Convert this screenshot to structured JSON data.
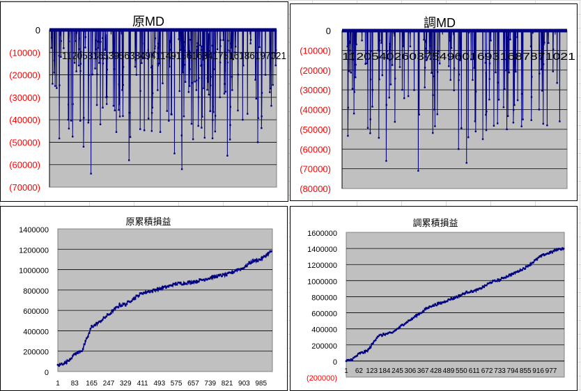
{
  "colors": {
    "series": "#000080",
    "plot_bg": "#c0c0c0",
    "negative_label": "#ff0000",
    "positive_label": "#000000"
  },
  "chart_data": [
    {
      "id": "orig-md",
      "type": "line",
      "title": "原MD",
      "ylim": [
        -70000,
        0
      ],
      "y_ticks": [
        {
          "value": 0,
          "label": "0"
        },
        {
          "value": -10000,
          "label": "(10000)"
        },
        {
          "value": -20000,
          "label": "(20000)"
        },
        {
          "value": -30000,
          "label": "(30000)"
        },
        {
          "value": -40000,
          "label": "(40000)"
        },
        {
          "value": -50000,
          "label": "(50000)"
        },
        {
          "value": -60000,
          "label": "(60000)"
        },
        {
          "value": -70000,
          "label": "(70000)"
        }
      ],
      "x_tick_text": "1120531653956334941149156163417516186197021",
      "n_points": 1040,
      "series": [
        {
          "marker_values": [
            0,
            -12000,
            -40000,
            -5000,
            -52000,
            -64000,
            -8000,
            -30000,
            -10000,
            -2000,
            -58000,
            -20000,
            -6000,
            -45000,
            -15000,
            -3000,
            -55000,
            -62000,
            -25000,
            -12000,
            -48000,
            -7000,
            -30000,
            -56000,
            -10000,
            -40000,
            -2000,
            -50000,
            -20000,
            0
          ]
        }
      ]
    },
    {
      "id": "adj-md",
      "type": "line",
      "title": "調MD",
      "ylim": [
        -80000,
        0
      ],
      "y_ticks": [
        {
          "value": 0,
          "label": "0"
        },
        {
          "value": -10000,
          "label": "(10000)"
        },
        {
          "value": -20000,
          "label": "(20000)"
        },
        {
          "value": -30000,
          "label": "(30000)"
        },
        {
          "value": -40000,
          "label": "(40000)"
        },
        {
          "value": -50000,
          "label": "(50000)"
        },
        {
          "value": -60000,
          "label": "(60000)"
        },
        {
          "value": -70000,
          "label": "(70000)"
        },
        {
          "value": -80000,
          "label": "(80000)"
        }
      ],
      "x_tick_text": "1120540260375496016931687871021",
      "n_points": 1040,
      "series": [
        {
          "marker_values": [
            0,
            -42000,
            -5000,
            -52000,
            -10000,
            -66000,
            -3000,
            -30000,
            -8000,
            -71000,
            -15000,
            -40000,
            -2000,
            -25000,
            -60000,
            -67000,
            -10000,
            -55000,
            -5000,
            -35000,
            -50000,
            -20000,
            -45000,
            -8000,
            -40000,
            -48000,
            -2000,
            0
          ]
        }
      ]
    },
    {
      "id": "orig-cum",
      "type": "line",
      "title": "原累積損益",
      "ylim": [
        0,
        1400000
      ],
      "y_ticks": [
        {
          "value": 0,
          "label": "0"
        },
        {
          "value": 200000,
          "label": "200000"
        },
        {
          "value": 400000,
          "label": "400000"
        },
        {
          "value": 600000,
          "label": "600000"
        },
        {
          "value": 800000,
          "label": "800000"
        },
        {
          "value": 1000000,
          "label": "1000000"
        },
        {
          "value": 1200000,
          "label": "1200000"
        },
        {
          "value": 1400000,
          "label": "1400000"
        }
      ],
      "x": [
        "1",
        "83",
        "165",
        "247",
        "329",
        "411",
        "493",
        "575",
        "657",
        "739",
        "821",
        "903",
        "985"
      ],
      "series": [
        {
          "points": [
            [
              1,
              60000
            ],
            [
              40,
              90000
            ],
            [
              83,
              170000
            ],
            [
              120,
              210000
            ],
            [
              165,
              440000
            ],
            [
              200,
              480000
            ],
            [
              247,
              560000
            ],
            [
              300,
              650000
            ],
            [
              329,
              660000
            ],
            [
              370,
              720000
            ],
            [
              411,
              770000
            ],
            [
              450,
              790000
            ],
            [
              493,
              810000
            ],
            [
              540,
              840000
            ],
            [
              575,
              860000
            ],
            [
              620,
              870000
            ],
            [
              657,
              880000
            ],
            [
              700,
              900000
            ],
            [
              739,
              920000
            ],
            [
              780,
              940000
            ],
            [
              821,
              950000
            ],
            [
              860,
              990000
            ],
            [
              903,
              1020000
            ],
            [
              940,
              1080000
            ],
            [
              985,
              1100000
            ],
            [
              1035,
              1180000
            ]
          ]
        }
      ]
    },
    {
      "id": "adj-cum",
      "type": "line",
      "title": "調累積損益",
      "ylim": [
        -200000,
        1600000
      ],
      "y_ticks": [
        {
          "value": -200000,
          "label": "(200000)"
        },
        {
          "value": 0,
          "label": "0"
        },
        {
          "value": 200000,
          "label": "200000"
        },
        {
          "value": 400000,
          "label": "400000"
        },
        {
          "value": 600000,
          "label": "600000"
        },
        {
          "value": 800000,
          "label": "800000"
        },
        {
          "value": 1000000,
          "label": "1000000"
        },
        {
          "value": 1200000,
          "label": "1200000"
        },
        {
          "value": 1400000,
          "label": "1400000"
        },
        {
          "value": 1600000,
          "label": "1600000"
        }
      ],
      "x": [
        "1",
        "62",
        "123",
        "184",
        "245",
        "306",
        "367",
        "428",
        "489",
        "550",
        "611",
        "672",
        "733",
        "794",
        "855",
        "916",
        "977"
      ],
      "series": [
        {
          "points": [
            [
              1,
              0
            ],
            [
              30,
              20000
            ],
            [
              62,
              90000
            ],
            [
              100,
              120000
            ],
            [
              123,
              200000
            ],
            [
              150,
              310000
            ],
            [
              184,
              330000
            ],
            [
              220,
              350000
            ],
            [
              245,
              400000
            ],
            [
              280,
              470000
            ],
            [
              306,
              510000
            ],
            [
              340,
              570000
            ],
            [
              367,
              620000
            ],
            [
              400,
              680000
            ],
            [
              428,
              700000
            ],
            [
              460,
              730000
            ],
            [
              489,
              760000
            ],
            [
              520,
              790000
            ],
            [
              550,
              820000
            ],
            [
              580,
              860000
            ],
            [
              611,
              870000
            ],
            [
              640,
              900000
            ],
            [
              672,
              950000
            ],
            [
              700,
              990000
            ],
            [
              733,
              1010000
            ],
            [
              770,
              1060000
            ],
            [
              794,
              1080000
            ],
            [
              830,
              1130000
            ],
            [
              855,
              1160000
            ],
            [
              890,
              1230000
            ],
            [
              916,
              1280000
            ],
            [
              950,
              1330000
            ],
            [
              977,
              1350000
            ],
            [
              1010,
              1390000
            ],
            [
              1040,
              1400000
            ]
          ]
        }
      ]
    }
  ]
}
